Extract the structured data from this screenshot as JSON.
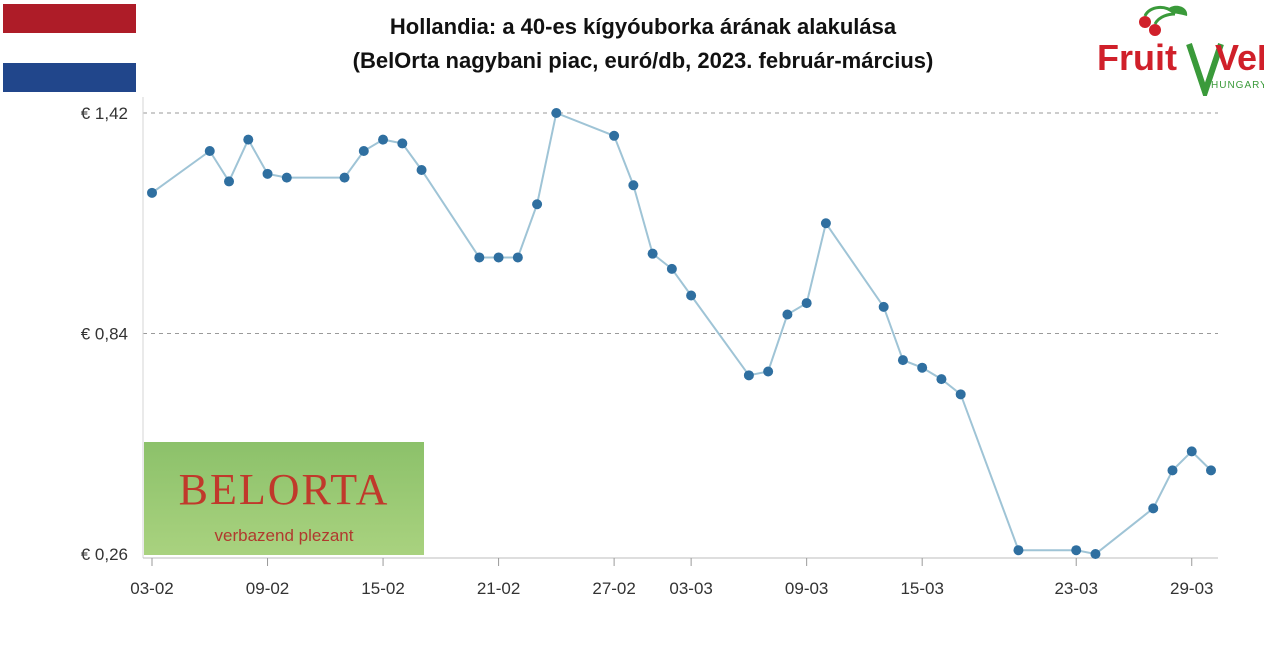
{
  "flag": {
    "colors": [
      "#ae1c28",
      "#ffffff",
      "#21468b"
    ]
  },
  "title": {
    "line1": "Hollandia: a 40-es kígyóuborka árának alakulása",
    "line2": "(BelOrta nagybani piac, euró/db, 2023. február-március)"
  },
  "logos": {
    "fruitveb": {
      "text_left": "Fruit",
      "text_right": "VeB",
      "sub": "HUNGARY"
    },
    "belorta": {
      "brand": "BELORTA",
      "tagline": "verbazend plezant"
    }
  },
  "chart_data": {
    "type": "line",
    "title": "Hollandia: a 40-es kígyóuborka árának alakulása (BelOrta nagybani piac, euró/db, 2023. február-március)",
    "xlabel": "",
    "ylabel": "",
    "ylim": [
      0.26,
      1.42
    ],
    "y_ticks": [
      {
        "value": 1.42,
        "label": "€ 1,42"
      },
      {
        "value": 0.84,
        "label": "€ 0,84"
      },
      {
        "value": 0.26,
        "label": "€ 0,26"
      }
    ],
    "x_ticks": [
      {
        "x": "2023-02-03",
        "label": "03-02"
      },
      {
        "x": "2023-02-09",
        "label": "09-02"
      },
      {
        "x": "2023-02-15",
        "label": "15-02"
      },
      {
        "x": "2023-02-21",
        "label": "21-02"
      },
      {
        "x": "2023-02-27",
        "label": "27-02"
      },
      {
        "x": "2023-03-03",
        "label": "03-03"
      },
      {
        "x": "2023-03-09",
        "label": "09-03"
      },
      {
        "x": "2023-03-15",
        "label": "15-03"
      },
      {
        "x": "2023-03-23",
        "label": "23-03"
      },
      {
        "x": "2023-03-29",
        "label": "29-03"
      }
    ],
    "grid": true,
    "series": [
      {
        "color": "#9fc4d6",
        "marker_color": "#2f6fa0",
        "points": [
          {
            "x": "2023-02-03",
            "y": 1.21
          },
          {
            "x": "2023-02-06",
            "y": 1.32
          },
          {
            "x": "2023-02-07",
            "y": 1.24
          },
          {
            "x": "2023-02-08",
            "y": 1.35
          },
          {
            "x": "2023-02-09",
            "y": 1.26
          },
          {
            "x": "2023-02-10",
            "y": 1.25
          },
          {
            "x": "2023-02-13",
            "y": 1.25
          },
          {
            "x": "2023-02-14",
            "y": 1.32
          },
          {
            "x": "2023-02-15",
            "y": 1.35
          },
          {
            "x": "2023-02-16",
            "y": 1.34
          },
          {
            "x": "2023-02-17",
            "y": 1.27
          },
          {
            "x": "2023-02-20",
            "y": 1.04
          },
          {
            "x": "2023-02-21",
            "y": 1.04
          },
          {
            "x": "2023-02-22",
            "y": 1.04
          },
          {
            "x": "2023-02-23",
            "y": 1.18
          },
          {
            "x": "2023-02-24",
            "y": 1.42
          },
          {
            "x": "2023-02-27",
            "y": 1.36
          },
          {
            "x": "2023-02-28",
            "y": 1.23
          },
          {
            "x": "2023-03-01",
            "y": 1.05
          },
          {
            "x": "2023-03-02",
            "y": 1.01
          },
          {
            "x": "2023-03-03",
            "y": 0.94
          },
          {
            "x": "2023-03-06",
            "y": 0.73
          },
          {
            "x": "2023-03-07",
            "y": 0.74
          },
          {
            "x": "2023-03-08",
            "y": 0.89
          },
          {
            "x": "2023-03-09",
            "y": 0.92
          },
          {
            "x": "2023-03-10",
            "y": 1.13
          },
          {
            "x": "2023-03-13",
            "y": 0.91
          },
          {
            "x": "2023-03-14",
            "y": 0.77
          },
          {
            "x": "2023-03-15",
            "y": 0.75
          },
          {
            "x": "2023-03-16",
            "y": 0.72
          },
          {
            "x": "2023-03-17",
            "y": 0.68
          },
          {
            "x": "2023-03-20",
            "y": 0.27
          },
          {
            "x": "2023-03-23",
            "y": 0.27
          },
          {
            "x": "2023-03-24",
            "y": 0.26
          },
          {
            "x": "2023-03-27",
            "y": 0.38
          },
          {
            "x": "2023-03-28",
            "y": 0.48
          },
          {
            "x": "2023-03-29",
            "y": 0.53
          },
          {
            "x": "2023-03-30",
            "y": 0.48
          }
        ]
      }
    ]
  }
}
